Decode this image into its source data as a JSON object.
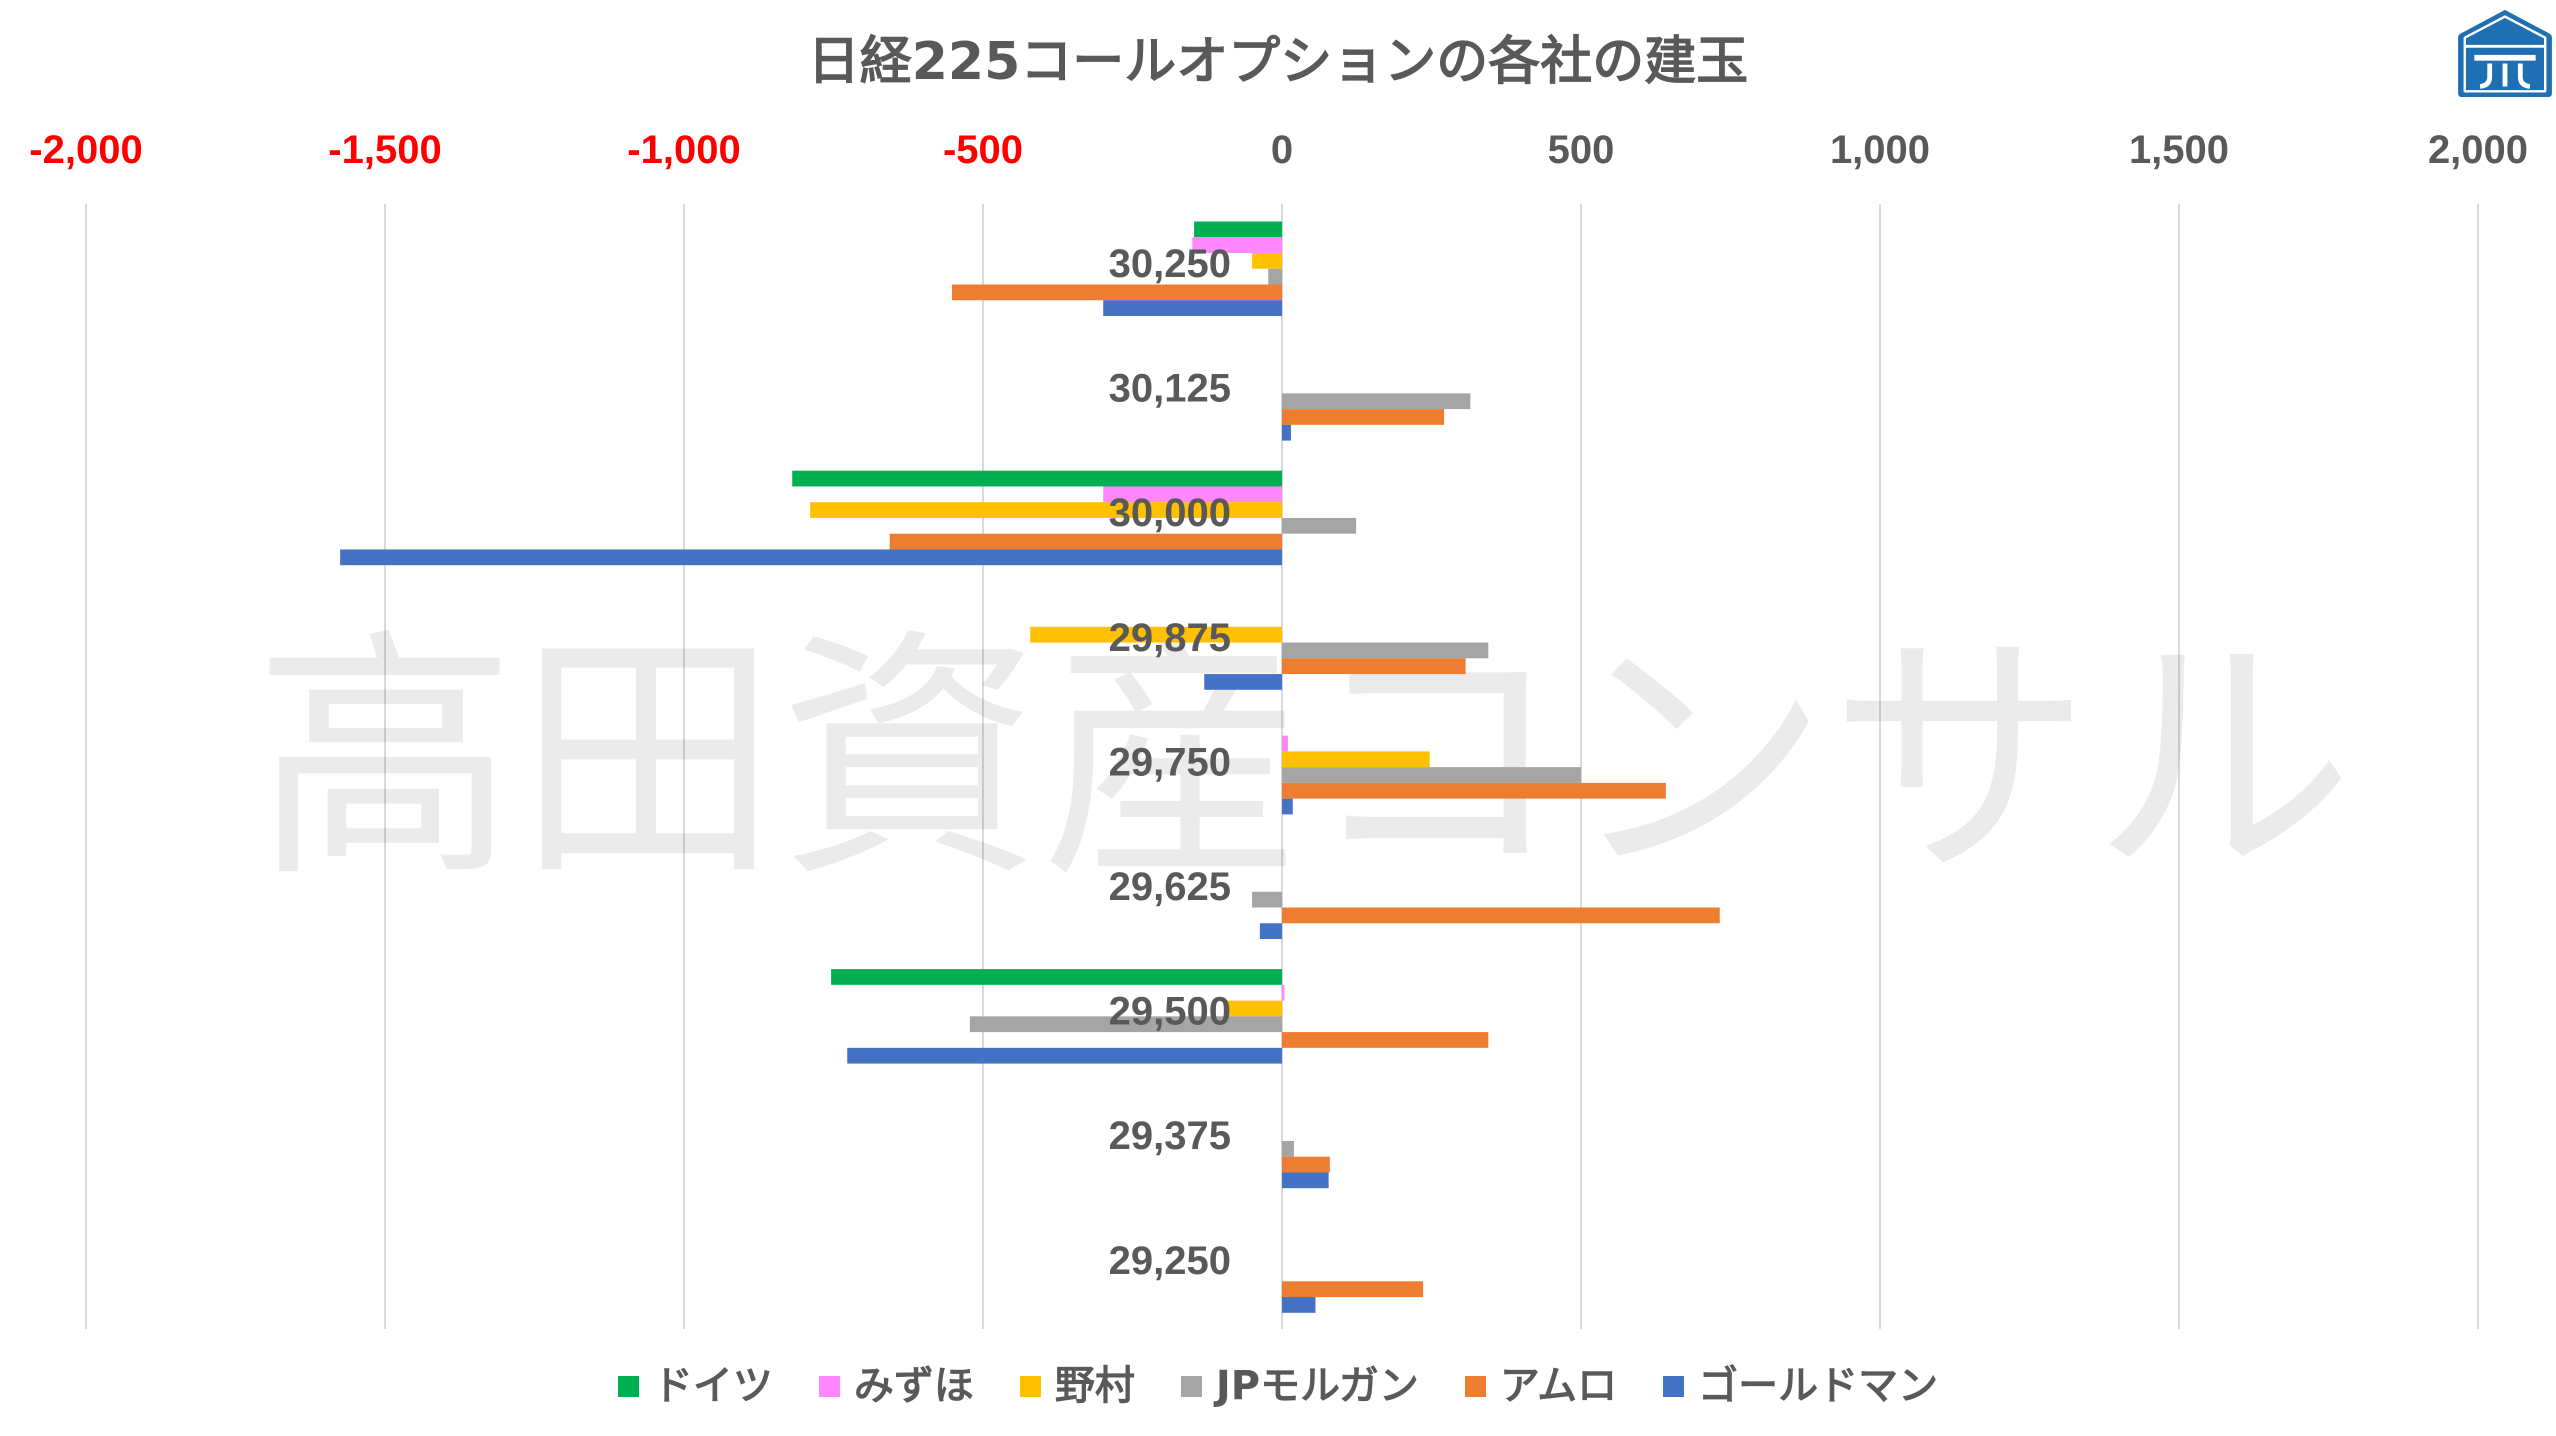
{
  "watermark": "高田資産コンサル",
  "logo": {
    "icon": "house-logo-icon",
    "color": "#1F6FB2"
  },
  "chart_data": {
    "type": "bar",
    "orientation": "horizontal",
    "title": "日経225コールオプションの各社の建玉",
    "categories": [
      "30,250",
      "30,125",
      "30,000",
      "29,875",
      "29,750",
      "29,625",
      "29,500",
      "29,375",
      "29,250"
    ],
    "xlim": [
      -2000,
      2000
    ],
    "xticks": [
      -2000,
      -1500,
      -1000,
      -500,
      0,
      500,
      1000,
      1500,
      2000
    ],
    "xtick_labels": [
      "-2,000",
      "-1,500",
      "-1,000",
      "-500",
      "0",
      "500",
      "1,000",
      "1,500",
      "2,000"
    ],
    "xtick_position": "top",
    "tick_label_colors": {
      "negative": "#FF0000",
      "default": "#595959"
    },
    "grid": true,
    "legend_position": "bottom",
    "series": [
      {
        "name": "ドイツ",
        "color": "#00B050",
        "values": [
          -147,
          0,
          -819,
          0,
          0,
          0,
          -754,
          0,
          0
        ]
      },
      {
        "name": "みずほ",
        "color": "#FF88FF",
        "values": [
          -150,
          0,
          -299,
          0,
          10,
          0,
          4,
          0,
          0
        ]
      },
      {
        "name": "野村",
        "color": "#FFC000",
        "values": [
          -50,
          0,
          -789,
          -421,
          247,
          0,
          -94,
          0,
          0
        ]
      },
      {
        "name": "JPモルガン",
        "color": "#A5A5A5",
        "values": [
          -23,
          315,
          124,
          345,
          500,
          -50,
          -522,
          20,
          0
        ]
      },
      {
        "name": "アムロ",
        "color": "#ED7D31",
        "values": [
          -552,
          271,
          -656,
          307,
          642,
          732,
          345,
          80,
          236
        ]
      },
      {
        "name": "ゴールドマン",
        "color": "#4472C4",
        "values": [
          -299,
          15,
          -1575,
          -130,
          18,
          -37,
          -727,
          78,
          56
        ]
      }
    ]
  }
}
